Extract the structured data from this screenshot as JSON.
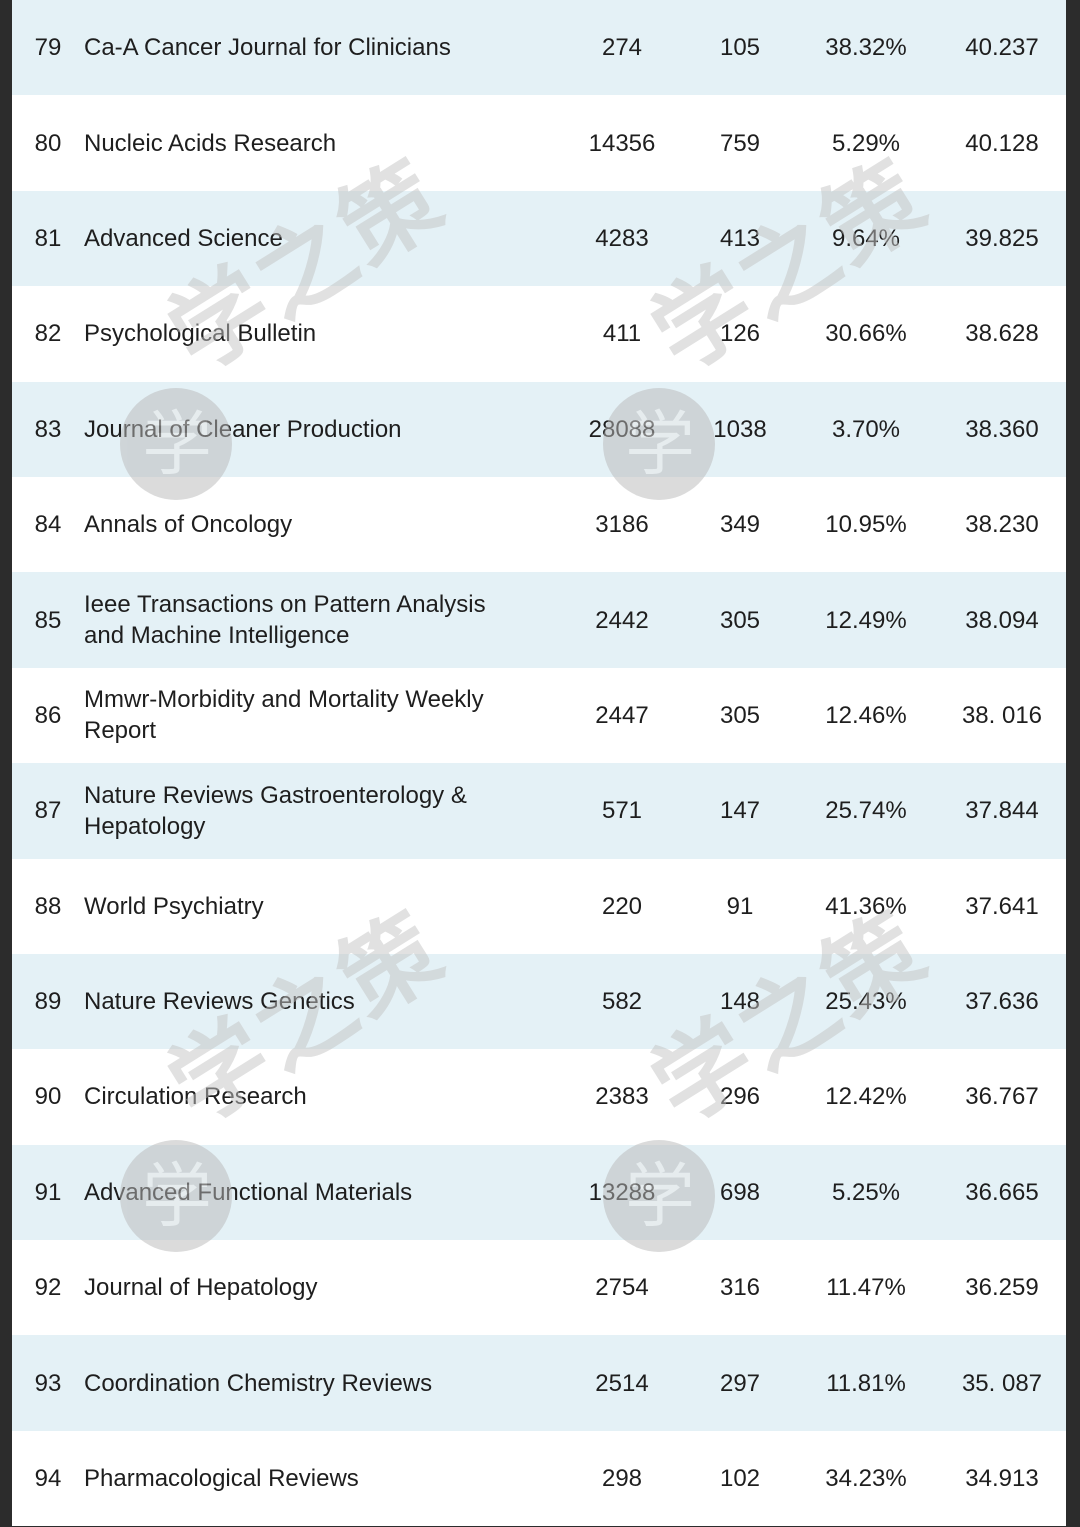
{
  "rows": [
    {
      "rank": "79",
      "name": [
        "Ca-A Cancer Journal for Clinicians"
      ],
      "total": "274",
      "count": "105",
      "pct": "38.32%",
      "impact": "40.237"
    },
    {
      "rank": "80",
      "name": [
        "Nucleic Acids Research"
      ],
      "total": "14356",
      "count": "759",
      "pct": "5.29%",
      "impact": "40.128"
    },
    {
      "rank": "81",
      "name": [
        "Advanced Science"
      ],
      "total": "4283",
      "count": "413",
      "pct": "9.64%",
      "impact": "39.825"
    },
    {
      "rank": "82",
      "name": [
        "Psychological Bulletin"
      ],
      "total": "411",
      "count": "126",
      "pct": "30.66%",
      "impact": "38.628"
    },
    {
      "rank": "83",
      "name": [
        "Journal of Cleaner Production"
      ],
      "total": "28088",
      "count": "1038",
      "pct": "3.70%",
      "impact": "38.360"
    },
    {
      "rank": "84",
      "name": [
        "Annals of Oncology"
      ],
      "total": "3186",
      "count": "349",
      "pct": "10.95%",
      "impact": "38.230"
    },
    {
      "rank": "85",
      "name": [
        "Ieee Transactions on Pattern Analysis",
        "and Machine Intelligence"
      ],
      "total": "2442",
      "count": "305",
      "pct": "12.49%",
      "impact": "38.094"
    },
    {
      "rank": "86",
      "name": [
        "Mmwr-Morbidity and Mortality Weekly",
        "Report"
      ],
      "total": "2447",
      "count": "305",
      "pct": "12.46%",
      "impact": "38. 016"
    },
    {
      "rank": "87",
      "name": [
        "Nature Reviews Gastroenterology &",
        "Hepatology"
      ],
      "total": "571",
      "count": "147",
      "pct": "25.74%",
      "impact": "37.844"
    },
    {
      "rank": "88",
      "name": [
        "World Psychiatry"
      ],
      "total": "220",
      "count": "91",
      "pct": "41.36%",
      "impact": "37.641"
    },
    {
      "rank": "89",
      "name": [
        "Nature Reviews Genetics"
      ],
      "total": "582",
      "count": "148",
      "pct": "25.43%",
      "impact": "37.636"
    },
    {
      "rank": "90",
      "name": [
        "Circulation Research"
      ],
      "total": "2383",
      "count": "296",
      "pct": "12.42%",
      "impact": "36.767"
    },
    {
      "rank": "91",
      "name": [
        "Advanced Functional Materials"
      ],
      "total": "13288",
      "count": "698",
      "pct": "5.25%",
      "impact": "36.665"
    },
    {
      "rank": "92",
      "name": [
        "Journal of Hepatology"
      ],
      "total": "2754",
      "count": "316",
      "pct": "11.47%",
      "impact": "36.259"
    },
    {
      "rank": "93",
      "name": [
        "Coordination Chemistry Reviews"
      ],
      "total": "2514",
      "count": "297",
      "pct": "11.81%",
      "impact": "35. 087"
    },
    {
      "rank": "94",
      "name": [
        "Pharmacological Reviews"
      ],
      "total": "298",
      "count": "102",
      "pct": "34.23%",
      "impact": "34.913"
    }
  ],
  "watermark": {
    "text": "学之策",
    "glyph": "学",
    "color": "#c4c4c4"
  },
  "colors": {
    "shaded_row": "#e4f1f6",
    "plain_row": "#ffffff",
    "text": "#1e1e1e",
    "border": "#2c2c2c"
  }
}
